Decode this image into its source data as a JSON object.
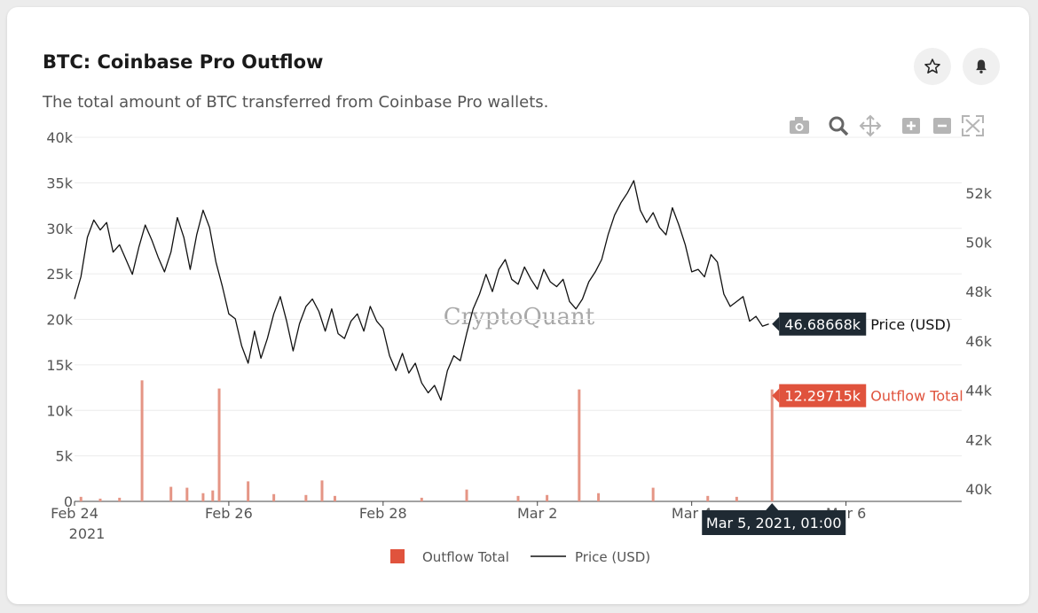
{
  "header": {
    "title": "BTC: Coinbase Pro Outflow",
    "subtitle": "The total amount of BTC transferred from Coinbase Pro wallets."
  },
  "buttons": {
    "favorite_icon": "star-icon",
    "alert_icon": "bell-icon"
  },
  "toolbar": [
    "camera-icon",
    "zoom-icon",
    "pan-icon",
    "zoom-in-icon",
    "zoom-out-icon",
    "autoscale-icon"
  ],
  "watermark": "CryptoQuant",
  "colors": {
    "outflow": "#e0533d",
    "outflow_bar": "#e59585",
    "price": "#111111",
    "tooltip_dark": "#1f2a33"
  },
  "chart_data": {
    "type": "bar+line",
    "x_ticks": [
      "Feb 24",
      "Feb 26",
      "Feb 28",
      "Mar 2",
      "Mar 4",
      "Mar 6"
    ],
    "x_year": "2021",
    "x_range": [
      "2021-02-24 00:00",
      "2021-03-07 12:00"
    ],
    "y_left": {
      "ticks": [
        "0",
        "5k",
        "10k",
        "15k",
        "20k",
        "25k",
        "30k",
        "35k",
        "40k"
      ],
      "range": [
        0,
        40000
      ]
    },
    "y_right": {
      "ticks": [
        "40k",
        "42k",
        "44k",
        "46k",
        "48k",
        "50k",
        "52k"
      ],
      "range": [
        39500,
        53500
      ]
    },
    "legend": [
      "Outflow Total",
      "Price (USD)"
    ],
    "series": [
      {
        "name": "Outflow Total",
        "type": "bar",
        "axis": "left",
        "spikes": [
          {
            "t": "2021-02-24 21:00",
            "value": 13300
          },
          {
            "t": "2021-02-25 21:00",
            "value": 12400
          },
          {
            "t": "2021-03-02 13:00",
            "value": 12300
          },
          {
            "t": "2021-03-05 01:00",
            "value": 12297
          }
        ],
        "small": [
          {
            "t": "2021-02-24 02:00",
            "value": 500
          },
          {
            "t": "2021-02-24 08:00",
            "value": 300
          },
          {
            "t": "2021-02-24 14:00",
            "value": 400
          },
          {
            "t": "2021-02-25 06:00",
            "value": 1600
          },
          {
            "t": "2021-02-25 11:00",
            "value": 1500
          },
          {
            "t": "2021-02-25 16:00",
            "value": 900
          },
          {
            "t": "2021-02-25 19:00",
            "value": 1200
          },
          {
            "t": "2021-02-26 06:00",
            "value": 2200
          },
          {
            "t": "2021-02-26 14:00",
            "value": 800
          },
          {
            "t": "2021-02-27 00:00",
            "value": 700
          },
          {
            "t": "2021-02-27 05:00",
            "value": 2300
          },
          {
            "t": "2021-02-27 09:00",
            "value": 600
          },
          {
            "t": "2021-02-28 12:00",
            "value": 400
          },
          {
            "t": "2021-03-01 02:00",
            "value": 1300
          },
          {
            "t": "2021-03-01 18:00",
            "value": 600
          },
          {
            "t": "2021-03-02 03:00",
            "value": 700
          },
          {
            "t": "2021-03-02 19:00",
            "value": 900
          },
          {
            "t": "2021-03-03 12:00",
            "value": 1500
          },
          {
            "t": "2021-03-04 05:00",
            "value": 600
          },
          {
            "t": "2021-03-04 14:00",
            "value": 500
          }
        ]
      },
      {
        "name": "Price (USD)",
        "type": "line",
        "axis": "right",
        "points": [
          [
            "2021-02-24 00:00",
            47700
          ],
          [
            "2021-02-24 02:00",
            48600
          ],
          [
            "2021-02-24 04:00",
            50200
          ],
          [
            "2021-02-24 06:00",
            50900
          ],
          [
            "2021-02-24 08:00",
            50500
          ],
          [
            "2021-02-24 10:00",
            50800
          ],
          [
            "2021-02-24 12:00",
            49600
          ],
          [
            "2021-02-24 14:00",
            49900
          ],
          [
            "2021-02-24 16:00",
            49300
          ],
          [
            "2021-02-24 18:00",
            48700
          ],
          [
            "2021-02-24 20:00",
            49800
          ],
          [
            "2021-02-24 22:00",
            50700
          ],
          [
            "2021-02-25 00:00",
            50100
          ],
          [
            "2021-02-25 02:00",
            49400
          ],
          [
            "2021-02-25 04:00",
            48800
          ],
          [
            "2021-02-25 06:00",
            49600
          ],
          [
            "2021-02-25 08:00",
            51000
          ],
          [
            "2021-02-25 10:00",
            50200
          ],
          [
            "2021-02-25 12:00",
            48900
          ],
          [
            "2021-02-25 14:00",
            50300
          ],
          [
            "2021-02-25 16:00",
            51300
          ],
          [
            "2021-02-25 18:00",
            50600
          ],
          [
            "2021-02-25 20:00",
            49200
          ],
          [
            "2021-02-25 22:00",
            48200
          ],
          [
            "2021-02-26 00:00",
            47100
          ],
          [
            "2021-02-26 02:00",
            46900
          ],
          [
            "2021-02-26 04:00",
            45800
          ],
          [
            "2021-02-26 06:00",
            45100
          ],
          [
            "2021-02-26 08:00",
            46400
          ],
          [
            "2021-02-26 10:00",
            45300
          ],
          [
            "2021-02-26 12:00",
            46100
          ],
          [
            "2021-02-26 14:00",
            47100
          ],
          [
            "2021-02-26 16:00",
            47800
          ],
          [
            "2021-02-26 18:00",
            46800
          ],
          [
            "2021-02-26 20:00",
            45600
          ],
          [
            "2021-02-26 22:00",
            46700
          ],
          [
            "2021-02-27 00:00",
            47400
          ],
          [
            "2021-02-27 02:00",
            47700
          ],
          [
            "2021-02-27 04:00",
            47200
          ],
          [
            "2021-02-27 06:00",
            46400
          ],
          [
            "2021-02-27 08:00",
            47300
          ],
          [
            "2021-02-27 10:00",
            46300
          ],
          [
            "2021-02-27 12:00",
            46100
          ],
          [
            "2021-02-27 14:00",
            46800
          ],
          [
            "2021-02-27 16:00",
            47100
          ],
          [
            "2021-02-27 18:00",
            46400
          ],
          [
            "2021-02-27 20:00",
            47400
          ],
          [
            "2021-02-27 22:00",
            46800
          ],
          [
            "2021-02-28 00:00",
            46500
          ],
          [
            "2021-02-28 02:00",
            45400
          ],
          [
            "2021-02-28 04:00",
            44800
          ],
          [
            "2021-02-28 06:00",
            45500
          ],
          [
            "2021-02-28 08:00",
            44700
          ],
          [
            "2021-02-28 10:00",
            45100
          ],
          [
            "2021-02-28 12:00",
            44300
          ],
          [
            "2021-02-28 14:00",
            43900
          ],
          [
            "2021-02-28 16:00",
            44200
          ],
          [
            "2021-02-28 18:00",
            43600
          ],
          [
            "2021-02-28 20:00",
            44800
          ],
          [
            "2021-02-28 22:00",
            45400
          ],
          [
            "2021-03-01 00:00",
            45200
          ],
          [
            "2021-03-01 02:00",
            46300
          ],
          [
            "2021-03-01 04:00",
            47300
          ],
          [
            "2021-03-01 06:00",
            47900
          ],
          [
            "2021-03-01 08:00",
            48700
          ],
          [
            "2021-03-01 10:00",
            48000
          ],
          [
            "2021-03-01 12:00",
            48900
          ],
          [
            "2021-03-01 14:00",
            49300
          ],
          [
            "2021-03-01 16:00",
            48500
          ],
          [
            "2021-03-01 18:00",
            48300
          ],
          [
            "2021-03-01 20:00",
            49000
          ],
          [
            "2021-03-01 22:00",
            48500
          ],
          [
            "2021-03-02 00:00",
            48100
          ],
          [
            "2021-03-02 02:00",
            48900
          ],
          [
            "2021-03-02 04:00",
            48400
          ],
          [
            "2021-03-02 06:00",
            48200
          ],
          [
            "2021-03-02 08:00",
            48500
          ],
          [
            "2021-03-02 10:00",
            47600
          ],
          [
            "2021-03-02 12:00",
            47300
          ],
          [
            "2021-03-02 14:00",
            47700
          ],
          [
            "2021-03-02 16:00",
            48400
          ],
          [
            "2021-03-02 18:00",
            48800
          ],
          [
            "2021-03-02 20:00",
            49300
          ],
          [
            "2021-03-02 22:00",
            50300
          ],
          [
            "2021-03-03 00:00",
            51100
          ],
          [
            "2021-03-03 02:00",
            51600
          ],
          [
            "2021-03-03 04:00",
            52000
          ],
          [
            "2021-03-03 06:00",
            52500
          ],
          [
            "2021-03-03 08:00",
            51300
          ],
          [
            "2021-03-03 10:00",
            50800
          ],
          [
            "2021-03-03 12:00",
            51200
          ],
          [
            "2021-03-03 14:00",
            50600
          ],
          [
            "2021-03-03 16:00",
            50300
          ],
          [
            "2021-03-03 18:00",
            51400
          ],
          [
            "2021-03-03 20:00",
            50700
          ],
          [
            "2021-03-03 22:00",
            49900
          ],
          [
            "2021-03-04 00:00",
            48800
          ],
          [
            "2021-03-04 02:00",
            48900
          ],
          [
            "2021-03-04 04:00",
            48600
          ],
          [
            "2021-03-04 06:00",
            49500
          ],
          [
            "2021-03-04 08:00",
            49200
          ],
          [
            "2021-03-04 10:00",
            47900
          ],
          [
            "2021-03-04 12:00",
            47400
          ],
          [
            "2021-03-04 14:00",
            47600
          ],
          [
            "2021-03-04 16:00",
            47800
          ],
          [
            "2021-03-04 18:00",
            46800
          ],
          [
            "2021-03-04 20:00",
            47000
          ],
          [
            "2021-03-04 22:00",
            46600
          ],
          [
            "2021-03-05 00:00",
            46687
          ]
        ]
      }
    ],
    "hover": {
      "date_label": "Mar 5, 2021, 01:00",
      "price_label": "46.68668k",
      "price_series": "Price (USD)",
      "outflow_label": "12.29715k",
      "outflow_series": "Outflow Total"
    }
  }
}
